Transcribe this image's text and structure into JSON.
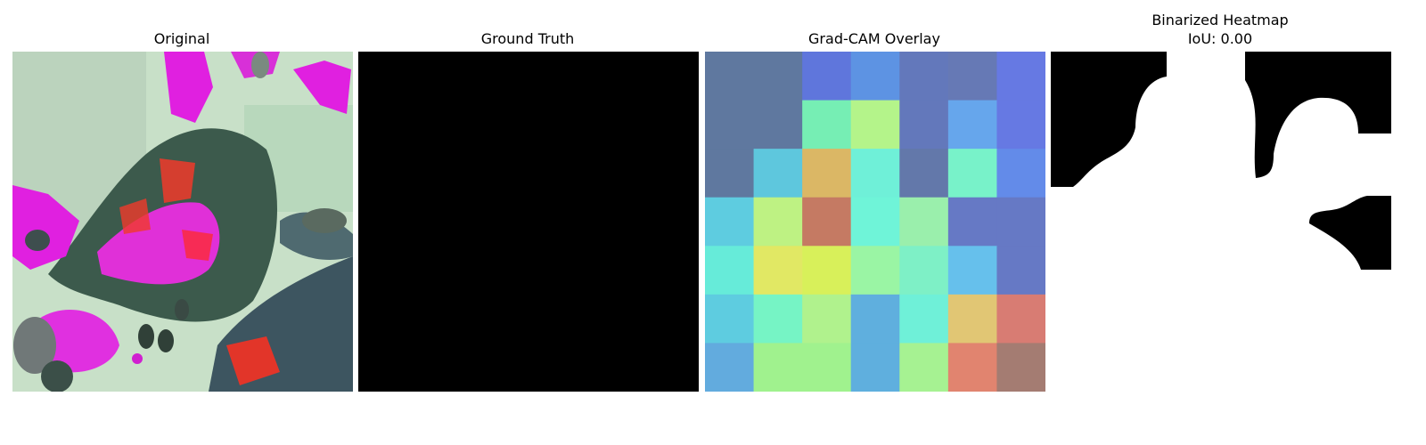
{
  "panels": {
    "original": {
      "title": "Original"
    },
    "ground_truth": {
      "title": "Ground Truth"
    },
    "gradcam": {
      "title": "Grad-CAM Overlay",
      "grid_colors": [
        [
          "#5f789f",
          "#5f789f",
          "#5f76dc",
          "#5d93e3",
          "#6378bb",
          "#6679b5",
          "#6679e3"
        ],
        [
          "#5f789f",
          "#5f789f",
          "#76eeb4",
          "#b4f48a",
          "#6378bb",
          "#66a6ec",
          "#6679e3"
        ],
        [
          "#5f789f",
          "#5ec7dd",
          "#dbb765",
          "#6ff0d8",
          "#6378aa",
          "#78f2c9",
          "#638be9"
        ],
        [
          "#5ecce0",
          "#bef283",
          "#c57a63",
          "#6ff4d8",
          "#9aefac",
          "#6679c5",
          "#6679c5"
        ],
        [
          "#66ebd9",
          "#e1e864",
          "#d8f05a",
          "#9af5a4",
          "#7ef0c6",
          "#66c0ec",
          "#6679c5"
        ],
        [
          "#5ecce0",
          "#76f4c5",
          "#b0f28d",
          "#5fafde",
          "#6ff0d8",
          "#e1c674",
          "#d87c73"
        ],
        [
          "#62abde",
          "#a0f28e",
          "#a0f28e",
          "#5fafde",
          "#a6f292",
          "#e1846f",
          "#a47c72"
        ]
      ]
    },
    "binarized": {
      "title": "Binarized Heatmap\nIoU: 0.00",
      "foreground": "#ffffff",
      "background": "#000000"
    }
  }
}
